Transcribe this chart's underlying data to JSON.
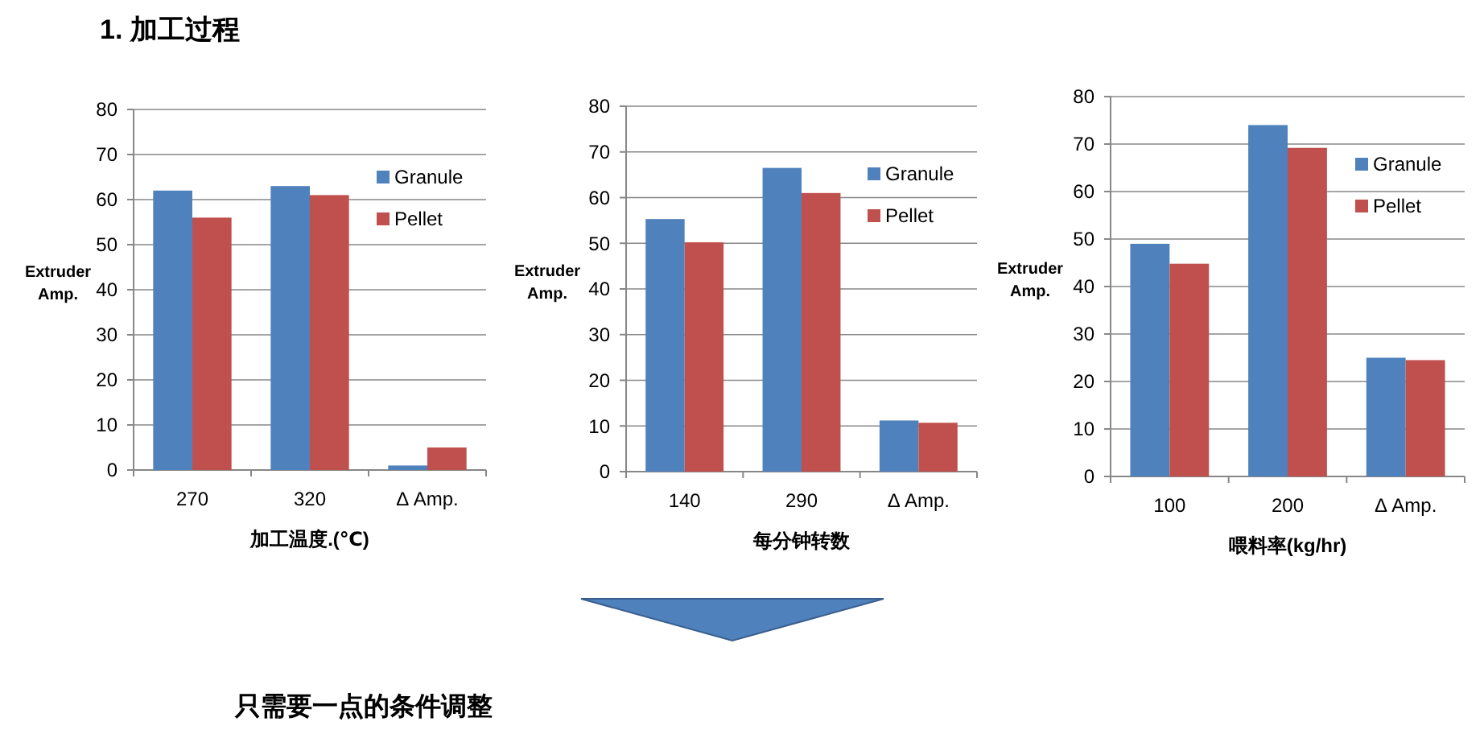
{
  "chart_data": [
    {
      "type": "other",
      "title": "1. 加工过程",
      "annotations": [
        "只需要一点的条件调整"
      ]
    },
    {
      "type": "bar",
      "xlabel": "加工温度.(℃)",
      "ylabel": "Extruder Amp.",
      "categories": [
        "270",
        "320",
        "Δ Amp."
      ],
      "series": [
        {
          "name": "Granule",
          "color": "#4f81bd",
          "values": [
            62,
            63,
            1
          ]
        },
        {
          "name": "Pellet",
          "color": "#c0504d",
          "values": [
            56,
            61,
            5
          ]
        }
      ],
      "ylim": [
        0,
        80
      ],
      "yticks": [
        0,
        10,
        20,
        30,
        40,
        50,
        60,
        70,
        80
      ],
      "grid": "y",
      "legend": "right"
    },
    {
      "type": "bar",
      "xlabel": "每分钟转数",
      "ylabel": "Extruder Amp.",
      "categories": [
        "140",
        "290",
        "Δ Amp."
      ],
      "series": [
        {
          "name": "Granule",
          "color": "#4f81bd",
          "values": [
            55.3,
            66.5,
            11.2
          ]
        },
        {
          "name": "Pellet",
          "color": "#c0504d",
          "values": [
            50.2,
            61,
            10.7
          ]
        }
      ],
      "ylim": [
        0,
        80
      ],
      "yticks": [
        0,
        10,
        20,
        30,
        40,
        50,
        60,
        70,
        80
      ],
      "grid": "y",
      "legend": "right"
    },
    {
      "type": "bar",
      "xlabel": "喂料率(kg/hr)",
      "ylabel": "Extruder Amp.",
      "categories": [
        "100",
        "200",
        "Δ Amp."
      ],
      "series": [
        {
          "name": "Granule",
          "color": "#4f81bd",
          "values": [
            49,
            74,
            25
          ]
        },
        {
          "name": "Pellet",
          "color": "#c0504d",
          "values": [
            44.8,
            69.2,
            24.5
          ]
        }
      ],
      "ylim": [
        0,
        80
      ],
      "yticks": [
        0,
        10,
        20,
        30,
        40,
        50,
        60,
        70,
        80
      ],
      "grid": "y",
      "legend": "right"
    }
  ]
}
